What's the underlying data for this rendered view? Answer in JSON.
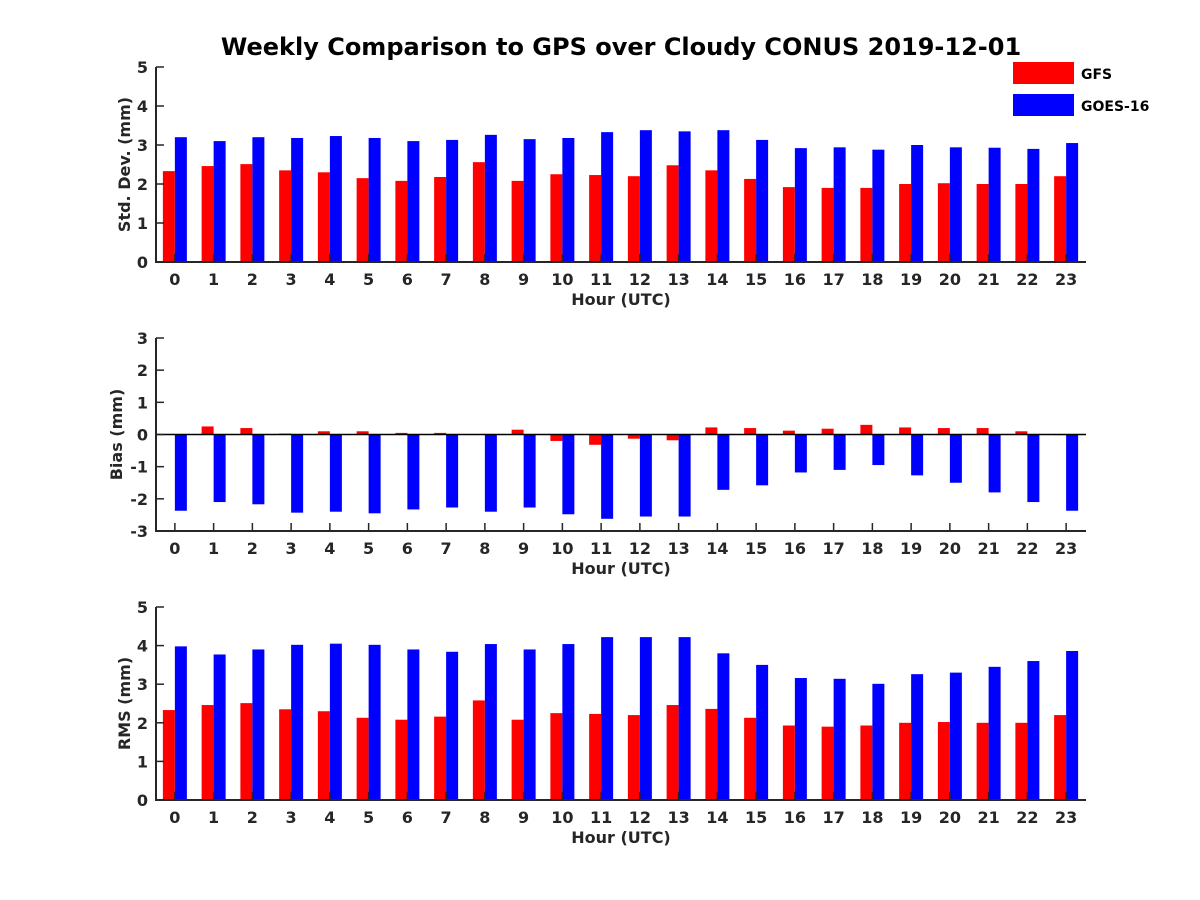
{
  "title": "Weekly Comparison to GPS over Cloudy CONUS 2019-12-01",
  "legend": {
    "placement": "top-right",
    "entries": [
      {
        "name": "GFS",
        "color": "#ff0000"
      },
      {
        "name": "GOES-16",
        "color": "#0000ff"
      }
    ]
  },
  "chart_data": [
    {
      "type": "bar",
      "xlabel": "Hour (UTC)",
      "ylabel": "Std. Dev. (mm)",
      "ylim": [
        0,
        5
      ],
      "yticks": [
        0,
        1,
        2,
        3,
        4,
        5
      ],
      "categories": [
        "0",
        "1",
        "2",
        "3",
        "4",
        "5",
        "6",
        "7",
        "8",
        "9",
        "10",
        "11",
        "12",
        "13",
        "14",
        "15",
        "16",
        "17",
        "18",
        "19",
        "20",
        "21",
        "22",
        "23"
      ],
      "series": [
        {
          "name": "GFS",
          "color": "#ff0000",
          "values": [
            2.33,
            2.46,
            2.51,
            2.35,
            2.3,
            2.15,
            2.08,
            2.18,
            2.56,
            2.08,
            2.25,
            2.23,
            2.2,
            2.48,
            2.35,
            2.13,
            1.92,
            1.9,
            1.9,
            2.0,
            2.02,
            2.0,
            2.0,
            2.2
          ]
        },
        {
          "name": "GOES-16",
          "color": "#0000ff",
          "values": [
            3.2,
            3.1,
            3.2,
            3.18,
            3.23,
            3.18,
            3.1,
            3.13,
            3.26,
            3.15,
            3.18,
            3.33,
            3.38,
            3.35,
            3.38,
            3.13,
            2.92,
            2.94,
            2.88,
            3.0,
            2.94,
            2.93,
            2.9,
            3.05
          ]
        }
      ]
    },
    {
      "type": "bar",
      "xlabel": "Hour (UTC)",
      "ylabel": "Bias (mm)",
      "ylim": [
        -3,
        3
      ],
      "yticks": [
        -3,
        -2,
        -1,
        0,
        1,
        2,
        3
      ],
      "zero_line": true,
      "categories": [
        "0",
        "1",
        "2",
        "3",
        "4",
        "5",
        "6",
        "7",
        "8",
        "9",
        "10",
        "11",
        "12",
        "13",
        "14",
        "15",
        "16",
        "17",
        "18",
        "19",
        "20",
        "21",
        "22",
        "23"
      ],
      "series": [
        {
          "name": "GFS",
          "color": "#ff0000",
          "values": [
            0.0,
            0.25,
            0.2,
            0.03,
            0.1,
            0.1,
            0.05,
            0.05,
            0.0,
            0.15,
            -0.2,
            -0.32,
            -0.13,
            -0.18,
            0.22,
            0.2,
            0.12,
            0.18,
            0.3,
            0.22,
            0.2,
            0.2,
            0.1,
            -0.02
          ]
        },
        {
          "name": "GOES-16",
          "color": "#0000ff",
          "values": [
            -2.37,
            -2.1,
            -2.17,
            -2.43,
            -2.4,
            -2.45,
            -2.33,
            -2.27,
            -2.4,
            -2.27,
            -2.48,
            -2.62,
            -2.55,
            -2.55,
            -1.72,
            -1.58,
            -1.18,
            -1.1,
            -0.95,
            -1.27,
            -1.5,
            -1.8,
            -2.1,
            -2.37
          ]
        }
      ]
    },
    {
      "type": "bar",
      "xlabel": "Hour (UTC)",
      "ylabel": "RMS (mm)",
      "ylim": [
        0,
        5
      ],
      "yticks": [
        0,
        1,
        2,
        3,
        4,
        5
      ],
      "categories": [
        "0",
        "1",
        "2",
        "3",
        "4",
        "5",
        "6",
        "7",
        "8",
        "9",
        "10",
        "11",
        "12",
        "13",
        "14",
        "15",
        "16",
        "17",
        "18",
        "19",
        "20",
        "21",
        "22",
        "23"
      ],
      "series": [
        {
          "name": "GFS",
          "color": "#ff0000",
          "values": [
            2.33,
            2.46,
            2.51,
            2.35,
            2.3,
            2.13,
            2.08,
            2.16,
            2.58,
            2.08,
            2.25,
            2.23,
            2.2,
            2.46,
            2.36,
            2.13,
            1.93,
            1.9,
            1.93,
            2.0,
            2.02,
            2.0,
            2.0,
            2.2
          ]
        },
        {
          "name": "GOES-16",
          "color": "#0000ff",
          "values": [
            3.98,
            3.77,
            3.9,
            4.02,
            4.05,
            4.02,
            3.9,
            3.84,
            4.04,
            3.9,
            4.04,
            4.22,
            4.22,
            4.22,
            3.8,
            3.5,
            3.16,
            3.14,
            3.01,
            3.26,
            3.3,
            3.45,
            3.6,
            3.86
          ]
        }
      ]
    }
  ]
}
